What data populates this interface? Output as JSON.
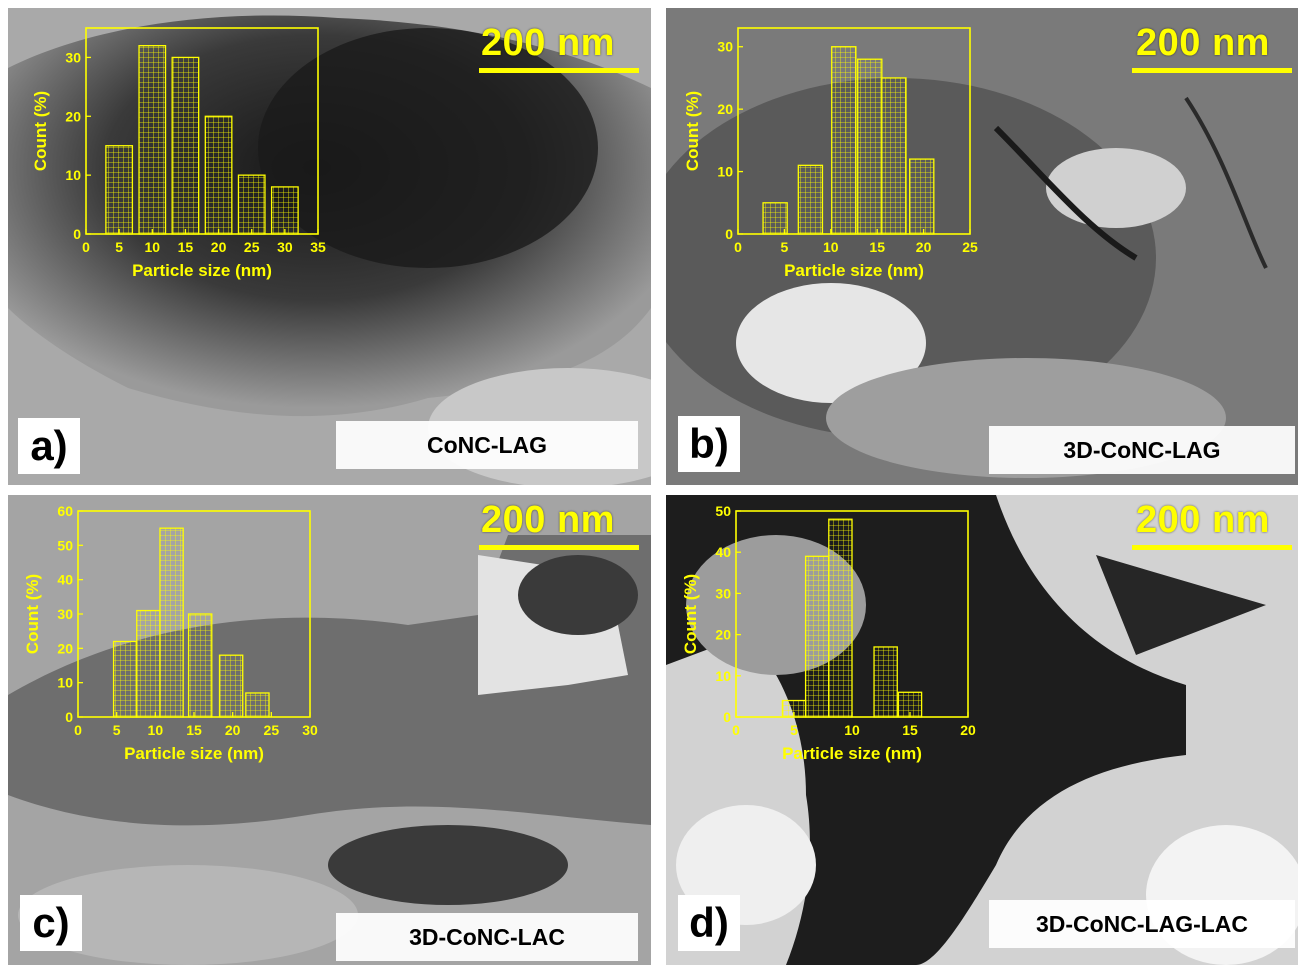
{
  "colors": {
    "accent": "#ffff00",
    "label_bg": "#ffffff"
  },
  "panels": [
    {
      "id": "a",
      "letter": "a)",
      "name": "CoNC-LAG",
      "scale_bar": "200 nm"
    },
    {
      "id": "b",
      "letter": "b)",
      "name": "3D-CoNC-LAG",
      "scale_bar": "200 nm"
    },
    {
      "id": "c",
      "letter": "c)",
      "name": "3D-CoNC-LAC",
      "scale_bar": "200 nm"
    },
    {
      "id": "d",
      "letter": "d)",
      "name": "3D-CoNC-LAG-LAC",
      "scale_bar": "200 nm"
    }
  ],
  "chart_data": [
    {
      "panel": "a",
      "type": "bar",
      "xlabel": "Particle size (nm)",
      "ylabel": "Count (%)",
      "xlim": [
        0,
        35
      ],
      "ylim": [
        0,
        35
      ],
      "xticks": [
        0,
        5,
        10,
        15,
        20,
        25,
        30,
        35
      ],
      "yticks": [
        0,
        10,
        20,
        30
      ],
      "bin_width": 4,
      "x": [
        5,
        10,
        15,
        20,
        25,
        30
      ],
      "values": [
        15,
        32,
        30,
        20,
        10,
        8
      ]
    },
    {
      "panel": "b",
      "type": "bar",
      "xlabel": "Particle size (nm)",
      "ylabel": "Count (%)",
      "xlim": [
        0,
        25
      ],
      "ylim": [
        0,
        33
      ],
      "xticks": [
        0,
        5,
        10,
        15,
        20,
        25
      ],
      "yticks": [
        0,
        10,
        20,
        30
      ],
      "bin_width": 2.6,
      "x": [
        4,
        7.8,
        11.4,
        14.2,
        16.8,
        19.8
      ],
      "values": [
        5,
        11,
        30,
        28,
        25,
        12
      ]
    },
    {
      "panel": "c",
      "type": "bar",
      "xlabel": "Particle size (nm)",
      "ylabel": "Count (%)",
      "xlim": [
        0,
        30
      ],
      "ylim": [
        0,
        60
      ],
      "xticks": [
        0,
        5,
        10,
        15,
        20,
        25,
        30
      ],
      "yticks": [
        0,
        10,
        20,
        30,
        40,
        50,
        60
      ],
      "bin_width": 3,
      "x": [
        6.1,
        9.1,
        12.1,
        15.8,
        19.8,
        23.2
      ],
      "values": [
        22,
        31,
        55,
        30,
        18,
        7
      ]
    },
    {
      "panel": "d",
      "type": "bar",
      "xlabel": "Particle size (nm)",
      "ylabel": "Count (%)",
      "xlim": [
        0,
        20
      ],
      "ylim": [
        0,
        50
      ],
      "xticks": [
        0,
        5,
        10,
        15,
        20
      ],
      "yticks": [
        0,
        10,
        20,
        30,
        40,
        50
      ],
      "bin_width": 2,
      "x": [
        5,
        7,
        9,
        12.9,
        15
      ],
      "values": [
        4,
        39,
        48,
        17,
        6
      ]
    }
  ]
}
